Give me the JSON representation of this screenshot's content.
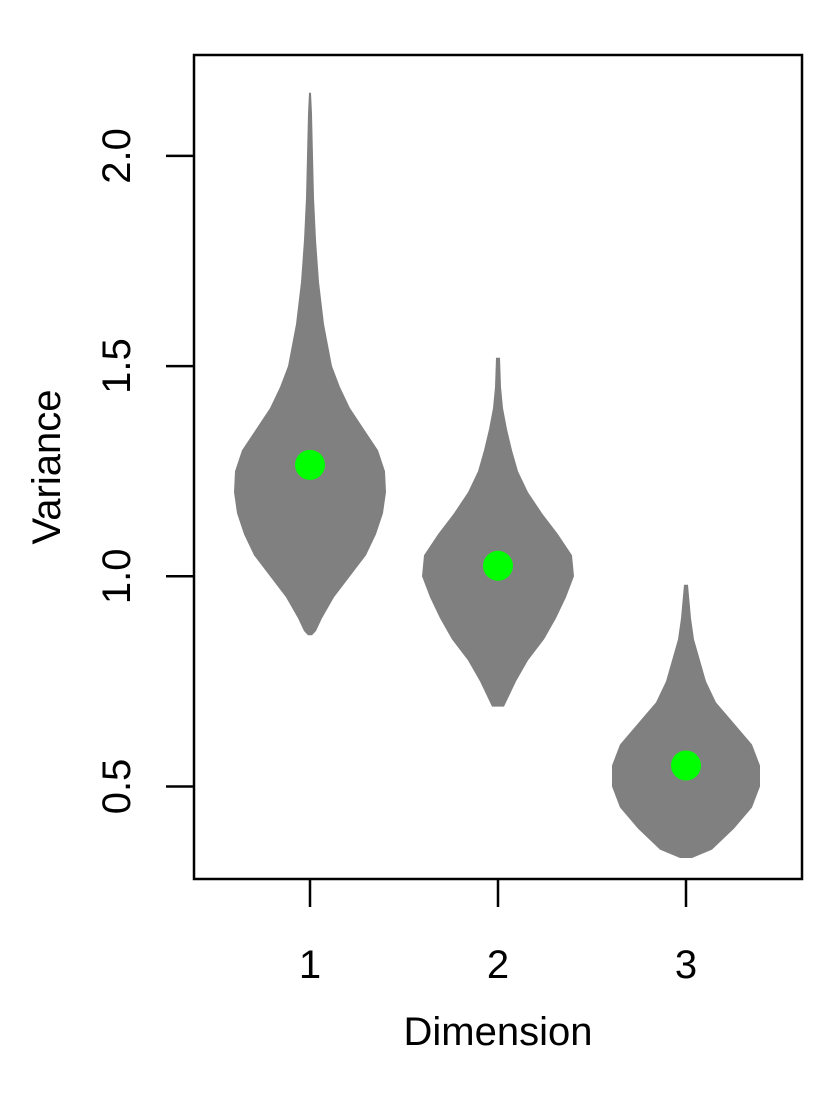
{
  "chart_data": {
    "type": "violin",
    "xlabel": "Dimension",
    "ylabel": "Variance",
    "categories": [
      "1",
      "2",
      "3"
    ],
    "ylim": [
      0.28,
      2.24
    ],
    "y_ticks": [
      0.5,
      1.0,
      1.5,
      2.0
    ],
    "y_tick_labels": [
      "0.5",
      "1.0",
      "1.5",
      "2.0"
    ],
    "grid": false,
    "legend": "none",
    "colors": {
      "violin": "#808080",
      "median": "#00ff00",
      "axes": "#000000"
    },
    "violins": [
      {
        "category": "1",
        "median": 1.265,
        "min": 0.86,
        "max": 2.15,
        "profile": [
          [
            0.86,
            0.01
          ],
          [
            0.87,
            0.03
          ],
          [
            0.9,
            0.06
          ],
          [
            0.95,
            0.12
          ],
          [
            1.0,
            0.2
          ],
          [
            1.05,
            0.28
          ],
          [
            1.1,
            0.33
          ],
          [
            1.15,
            0.365
          ],
          [
            1.2,
            0.38
          ],
          [
            1.25,
            0.375
          ],
          [
            1.3,
            0.34
          ],
          [
            1.35,
            0.27
          ],
          [
            1.4,
            0.2
          ],
          [
            1.45,
            0.15
          ],
          [
            1.5,
            0.11
          ],
          [
            1.6,
            0.07
          ],
          [
            1.7,
            0.045
          ],
          [
            1.8,
            0.03
          ],
          [
            1.9,
            0.02
          ],
          [
            2.0,
            0.015
          ],
          [
            2.1,
            0.01
          ],
          [
            2.15,
            0.005
          ]
        ]
      },
      {
        "category": "2",
        "median": 1.025,
        "min": 0.69,
        "max": 1.52,
        "profile": [
          [
            0.69,
            0.03
          ],
          [
            0.7,
            0.04
          ],
          [
            0.75,
            0.09
          ],
          [
            0.8,
            0.15
          ],
          [
            0.85,
            0.23
          ],
          [
            0.9,
            0.29
          ],
          [
            0.95,
            0.34
          ],
          [
            1.0,
            0.38
          ],
          [
            1.05,
            0.37
          ],
          [
            1.1,
            0.3
          ],
          [
            1.15,
            0.22
          ],
          [
            1.2,
            0.15
          ],
          [
            1.25,
            0.1
          ],
          [
            1.3,
            0.07
          ],
          [
            1.35,
            0.045
          ],
          [
            1.4,
            0.025
          ],
          [
            1.45,
            0.015
          ],
          [
            1.52,
            0.01
          ]
        ]
      },
      {
        "category": "3",
        "median": 0.55,
        "min": 0.33,
        "max": 0.98,
        "profile": [
          [
            0.33,
            0.03
          ],
          [
            0.35,
            0.13
          ],
          [
            0.4,
            0.24
          ],
          [
            0.45,
            0.33
          ],
          [
            0.5,
            0.37
          ],
          [
            0.55,
            0.37
          ],
          [
            0.6,
            0.33
          ],
          [
            0.65,
            0.24
          ],
          [
            0.7,
            0.15
          ],
          [
            0.75,
            0.1
          ],
          [
            0.8,
            0.07
          ],
          [
            0.85,
            0.04
          ],
          [
            0.9,
            0.025
          ],
          [
            0.98,
            0.01
          ]
        ]
      }
    ]
  }
}
